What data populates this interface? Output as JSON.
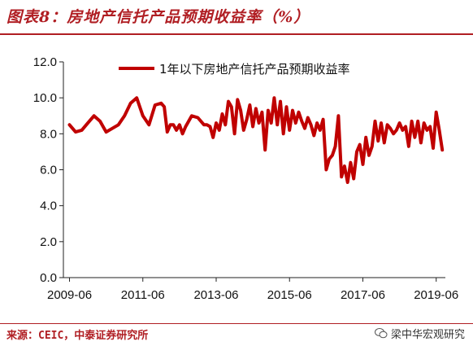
{
  "header": {
    "title": "图表8：房地产信托产品预期收益率（%）"
  },
  "footer": {
    "source": "来源：CEIC，中泰证券研究所",
    "watermark": "梁中华宏观研究",
    "watermark_icon": "wechat-icon"
  },
  "colors": {
    "accent": "#b01e23",
    "series": "#c00000"
  },
  "chart_data": {
    "type": "line",
    "title": "",
    "xlabel": "",
    "ylabel": "",
    "ylim": [
      0,
      12
    ],
    "yticks": [
      "0.0",
      "2.0",
      "4.0",
      "6.0",
      "8.0",
      "10.0",
      "12.0"
    ],
    "xlim": [
      "2009-06",
      "2019-08"
    ],
    "xticks": [
      "2009-06",
      "2011-06",
      "2013-06",
      "2015-06",
      "2017-06",
      "2019-06"
    ],
    "grid": false,
    "legend": "top",
    "series": [
      {
        "name": "1年以下房地产信托产品预期收益率",
        "color": "#c00000",
        "x": [
          "2009-06",
          "2009-08",
          "2009-10",
          "2009-12",
          "2010-02",
          "2010-04",
          "2010-06",
          "2010-08",
          "2010-10",
          "2010-12",
          "2011-02",
          "2011-04",
          "2011-06",
          "2011-08",
          "2011-10",
          "2011-12",
          "2012-01",
          "2012-02",
          "2012-03",
          "2012-04",
          "2012-05",
          "2012-06",
          "2012-07",
          "2012-08",
          "2012-10",
          "2012-12",
          "2013-02",
          "2013-03",
          "2013-04",
          "2013-05",
          "2013-06",
          "2013-07",
          "2013-08",
          "2013-09",
          "2013-10",
          "2013-11",
          "2013-12",
          "2014-01",
          "2014-02",
          "2014-03",
          "2014-04",
          "2014-05",
          "2014-06",
          "2014-07",
          "2014-08",
          "2014-09",
          "2014-10",
          "2014-11",
          "2014-12",
          "2015-01",
          "2015-02",
          "2015-03",
          "2015-04",
          "2015-05",
          "2015-06",
          "2015-07",
          "2015-08",
          "2015-09",
          "2015-10",
          "2015-11",
          "2015-12",
          "2016-01",
          "2016-02",
          "2016-03",
          "2016-04",
          "2016-05",
          "2016-06",
          "2016-07",
          "2016-08",
          "2016-09",
          "2016-10",
          "2016-11",
          "2016-12",
          "2017-01",
          "2017-02",
          "2017-03",
          "2017-04",
          "2017-05",
          "2017-06",
          "2017-07",
          "2017-08",
          "2017-09",
          "2017-10",
          "2017-11",
          "2017-12",
          "2018-01",
          "2018-02",
          "2018-03",
          "2018-04",
          "2018-05",
          "2018-06",
          "2018-07",
          "2018-08",
          "2018-09",
          "2018-10",
          "2018-11",
          "2018-12",
          "2019-01",
          "2019-02",
          "2019-03",
          "2019-04",
          "2019-05",
          "2019-06",
          "2019-07",
          "2019-08"
        ],
        "values": [
          8.5,
          8.1,
          8.2,
          8.6,
          9.0,
          8.7,
          8.1,
          8.3,
          8.5,
          9.0,
          9.7,
          10.0,
          9.0,
          8.5,
          9.6,
          9.7,
          9.5,
          8.1,
          8.5,
          8.5,
          8.2,
          8.5,
          8.0,
          8.4,
          9.0,
          8.9,
          8.5,
          8.5,
          8.4,
          7.8,
          8.6,
          8.2,
          9.1,
          8.5,
          9.8,
          9.5,
          8.0,
          9.9,
          9.3,
          8.2,
          8.8,
          9.6,
          8.4,
          9.4,
          8.6,
          9.2,
          7.1,
          9.3,
          8.6,
          10.0,
          8.5,
          9.8,
          8.0,
          9.5,
          8.2,
          9.3,
          8.6,
          9.2,
          8.7,
          8.3,
          8.9,
          8.5,
          7.9,
          8.6,
          8.2,
          8.8,
          6.0,
          6.6,
          6.8,
          7.3,
          9.0,
          5.6,
          6.2,
          5.3,
          6.4,
          5.5,
          7.0,
          7.4,
          6.3,
          7.8,
          6.8,
          7.3,
          8.7,
          7.6,
          8.6,
          7.5,
          8.5,
          8.3,
          8.0,
          8.2,
          8.6,
          8.2,
          8.4,
          7.3,
          8.7,
          7.8,
          8.7,
          7.5,
          8.6,
          8.2,
          8.4,
          7.2,
          9.2,
          8.2,
          7.1
        ]
      }
    ]
  }
}
